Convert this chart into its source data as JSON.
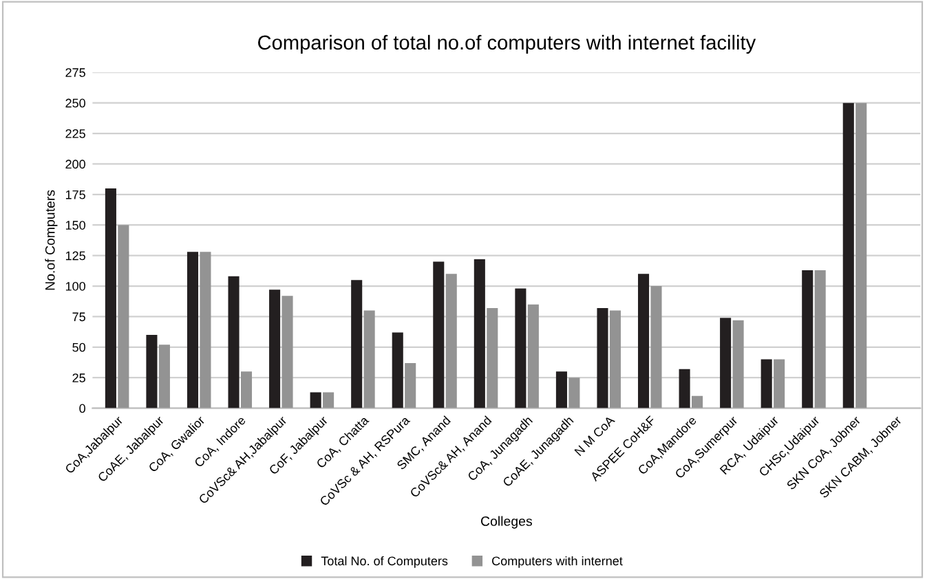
{
  "chart_data": {
    "type": "bar",
    "title": "Comparison of total no.of computers with internet facility",
    "xlabel": "Colleges",
    "ylabel": "No.of Computers",
    "categories": [
      "CoA,Jabalpur",
      "CoAE, Jabalpur",
      "CoA, Gwalior",
      "CoA, Indore",
      "CoVSc& AH,Jabalpur",
      "CoF, Jabalpur",
      "CoA, Chatta",
      "CoVSc & AH, RSPura",
      "SMC, Anand",
      "CoVSc& AH, Anand",
      "CoA, Junagadh",
      "CoAE, Junagadh",
      "N M CoA",
      "ASPEE CoH&F",
      "CoA,Mandore",
      "CoA,Sumerpur",
      "RCA, Udaipur",
      "CHSc,Udaipur",
      "SKN CoA, Jobner",
      "SKN CABM, Jobner"
    ],
    "series": [
      {
        "name": "Total No. of Computers",
        "color": "#231f20",
        "values": [
          180,
          60,
          128,
          108,
          97,
          13,
          105,
          62,
          120,
          122,
          98,
          30,
          82,
          110,
          32,
          74,
          40,
          113,
          250,
          0
        ]
      },
      {
        "name": "Computers with internet",
        "color": "#939393",
        "values": [
          150,
          52,
          128,
          30,
          92,
          13,
          80,
          37,
          110,
          82,
          85,
          25,
          80,
          100,
          10,
          72,
          40,
          113,
          250,
          0
        ]
      }
    ],
    "ylim": [
      0,
      275
    ],
    "yticks": [
      0,
      25,
      50,
      75,
      100,
      125,
      150,
      175,
      200,
      225,
      250,
      275
    ],
    "grid": "y",
    "legend": "bottom"
  }
}
